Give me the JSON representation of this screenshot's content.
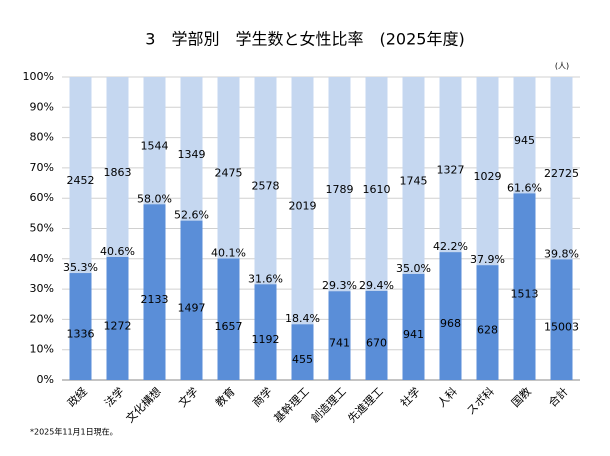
{
  "chart_data": {
    "type": "stacked100",
    "title": "3　学部別　学生数と女性比率　(2025年度)",
    "unit_note": "(人)",
    "footnote": "*2025年11月1日現在。",
    "categories": [
      "政経",
      "法学",
      "文化構想",
      "文学",
      "教育",
      "商学",
      "基幹理工",
      "創造理工",
      "先進理工",
      "社学",
      "人科",
      "スポ科",
      "国教",
      "合計"
    ],
    "shares": [
      35.3,
      40.6,
      58.0,
      52.6,
      40.1,
      31.6,
      18.4,
      29.3,
      29.4,
      35.0,
      42.2,
      37.9,
      61.6,
      39.8
    ],
    "share_labels": [
      "35.3%",
      "40.6%",
      "58.0%",
      "52.6%",
      "40.1%",
      "31.6%",
      "18.4%",
      "29.3%",
      "29.4%",
      "35.0%",
      "42.2%",
      "37.9%",
      "61.6%",
      "39.8%"
    ],
    "series": [
      {
        "color": "#5a8ed8",
        "values": [
          1336,
          1272,
          2133,
          1497,
          1657,
          1192,
          455,
          741,
          670,
          941,
          968,
          628,
          1513,
          15003
        ]
      },
      {
        "color": "#c5d7f0",
        "values": [
          2452,
          1863,
          1544,
          1349,
          2475,
          2578,
          2019,
          1789,
          1610,
          1745,
          1327,
          1029,
          945,
          22725
        ]
      }
    ],
    "ylim": [
      0,
      100
    ],
    "yticks": [
      {
        "value": 0,
        "label": "0%"
      },
      {
        "value": 10,
        "label": "10%"
      },
      {
        "value": 20,
        "label": "20%"
      },
      {
        "value": 30,
        "label": "30%"
      },
      {
        "value": 40,
        "label": "40%"
      },
      {
        "value": 50,
        "label": "50%"
      },
      {
        "value": 60,
        "label": "60%"
      },
      {
        "value": 70,
        "label": "70%"
      },
      {
        "value": 80,
        "label": "80%"
      },
      {
        "value": 90,
        "label": "90%"
      },
      {
        "value": 100,
        "label": "100%"
      }
    ],
    "grid": true
  }
}
